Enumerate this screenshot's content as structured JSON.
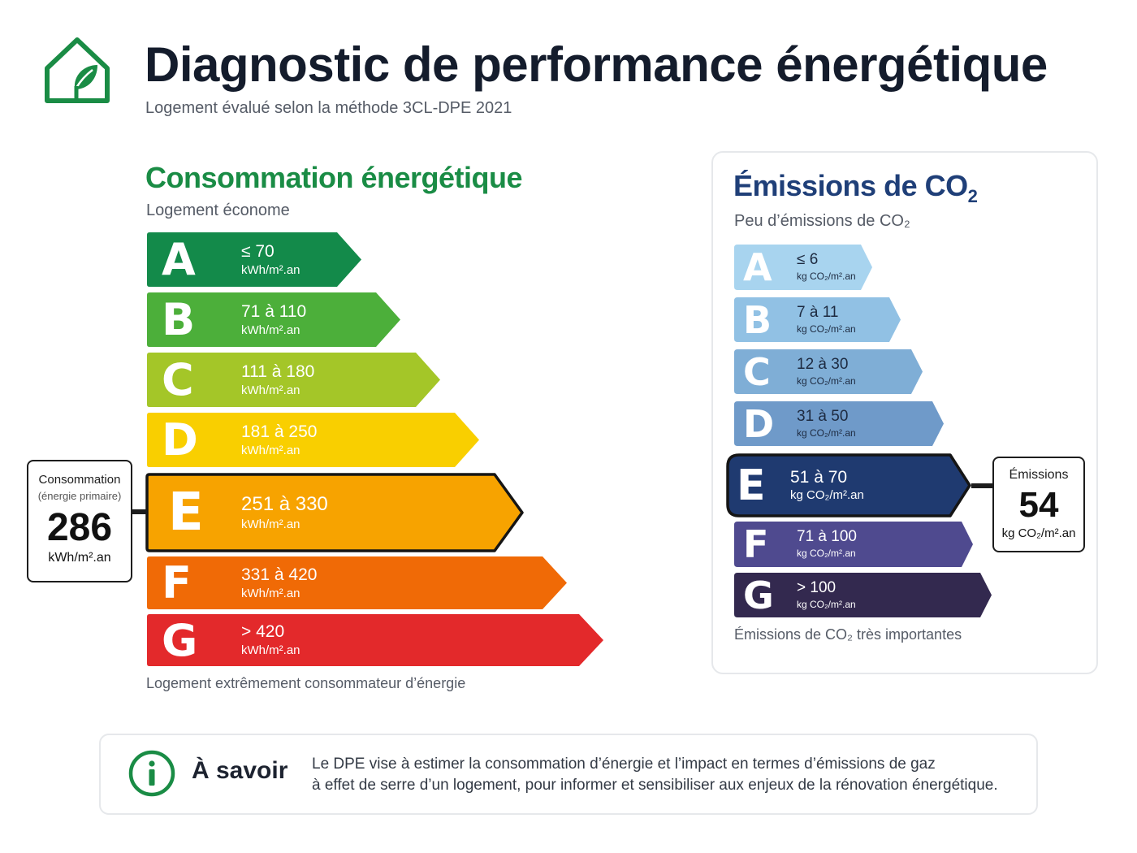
{
  "header": {
    "title": "Diagnostic de performance énergétique",
    "subtitle": "Logement évalué selon la méthode 3CL-DPE 2021",
    "icon": "house-leaf-icon"
  },
  "energy": {
    "title": "Consommation énergétique",
    "top_note": "Logement économe",
    "bottom_note": "Logement extrêmement consommateur d’énergie",
    "current_class": "E",
    "classes": [
      {
        "letter": "A",
        "range": "≤ 70",
        "unit": "kWh/m².an",
        "color": "#138a4a"
      },
      {
        "letter": "B",
        "range": "71 à 110",
        "unit": "kWh/m².an",
        "color": "#4caf3a"
      },
      {
        "letter": "C",
        "range": "111 à 180",
        "unit": "kWh/m².an",
        "color": "#a4c628"
      },
      {
        "letter": "D",
        "range": "181 à 250",
        "unit": "kWh/m².an",
        "color": "#f9cf00"
      },
      {
        "letter": "E",
        "range": "251 à 330",
        "unit": "kWh/m².an",
        "color": "#f7a300"
      },
      {
        "letter": "F",
        "range": "331 à 420",
        "unit": "kWh/m².an",
        "color": "#f06a06"
      },
      {
        "letter": "G",
        "range": "> 420",
        "unit": "kWh/m².an",
        "color": "#e3292b"
      }
    ],
    "callout": {
      "label": "Consommation",
      "sublabel": "(énergie primaire)",
      "value": "286",
      "unit": "kWh/m².an"
    }
  },
  "co2": {
    "title_main": "Émissions de CO",
    "title_sub": "2",
    "top_note": "Peu d’émissions de CO₂",
    "bottom_note": "Émissions de CO₂ très importantes",
    "current_class": "E",
    "classes": [
      {
        "letter": "A",
        "range": "≤ 6",
        "unit": "kg CO₂/m².an",
        "color": "#a8d4ef"
      },
      {
        "letter": "B",
        "range": "7 à 11",
        "unit": "kg CO₂/m².an",
        "color": "#91c1e4"
      },
      {
        "letter": "C",
        "range": "12 à 30",
        "unit": "kg CO₂/m².an",
        "color": "#7faed6"
      },
      {
        "letter": "D",
        "range": "31 à 50",
        "unit": "kg CO₂/m².an",
        "color": "#6f9ac9"
      },
      {
        "letter": "E",
        "range": "51 à 70",
        "unit": "kg CO₂/m².an",
        "color": "#1f3a70"
      },
      {
        "letter": "F",
        "range": "71 à 100",
        "unit": "kg CO₂/m².an",
        "color": "#4f4a8f"
      },
      {
        "letter": "G",
        "range": "> 100",
        "unit": "kg CO₂/m².an",
        "color": "#33294f"
      }
    ],
    "callout": {
      "label": "Émissions",
      "value": "54",
      "unit": "kg CO₂/m².an"
    }
  },
  "info": {
    "icon": "info-icon",
    "title": "À savoir",
    "line1": "Le DPE vise à estimer la consommation d’énergie et l’impact en termes d’émissions de gaz",
    "line2": "à effet de serre d’un logement, pour informer et sensibiliser aux enjeux de la rénovation énergétique."
  }
}
